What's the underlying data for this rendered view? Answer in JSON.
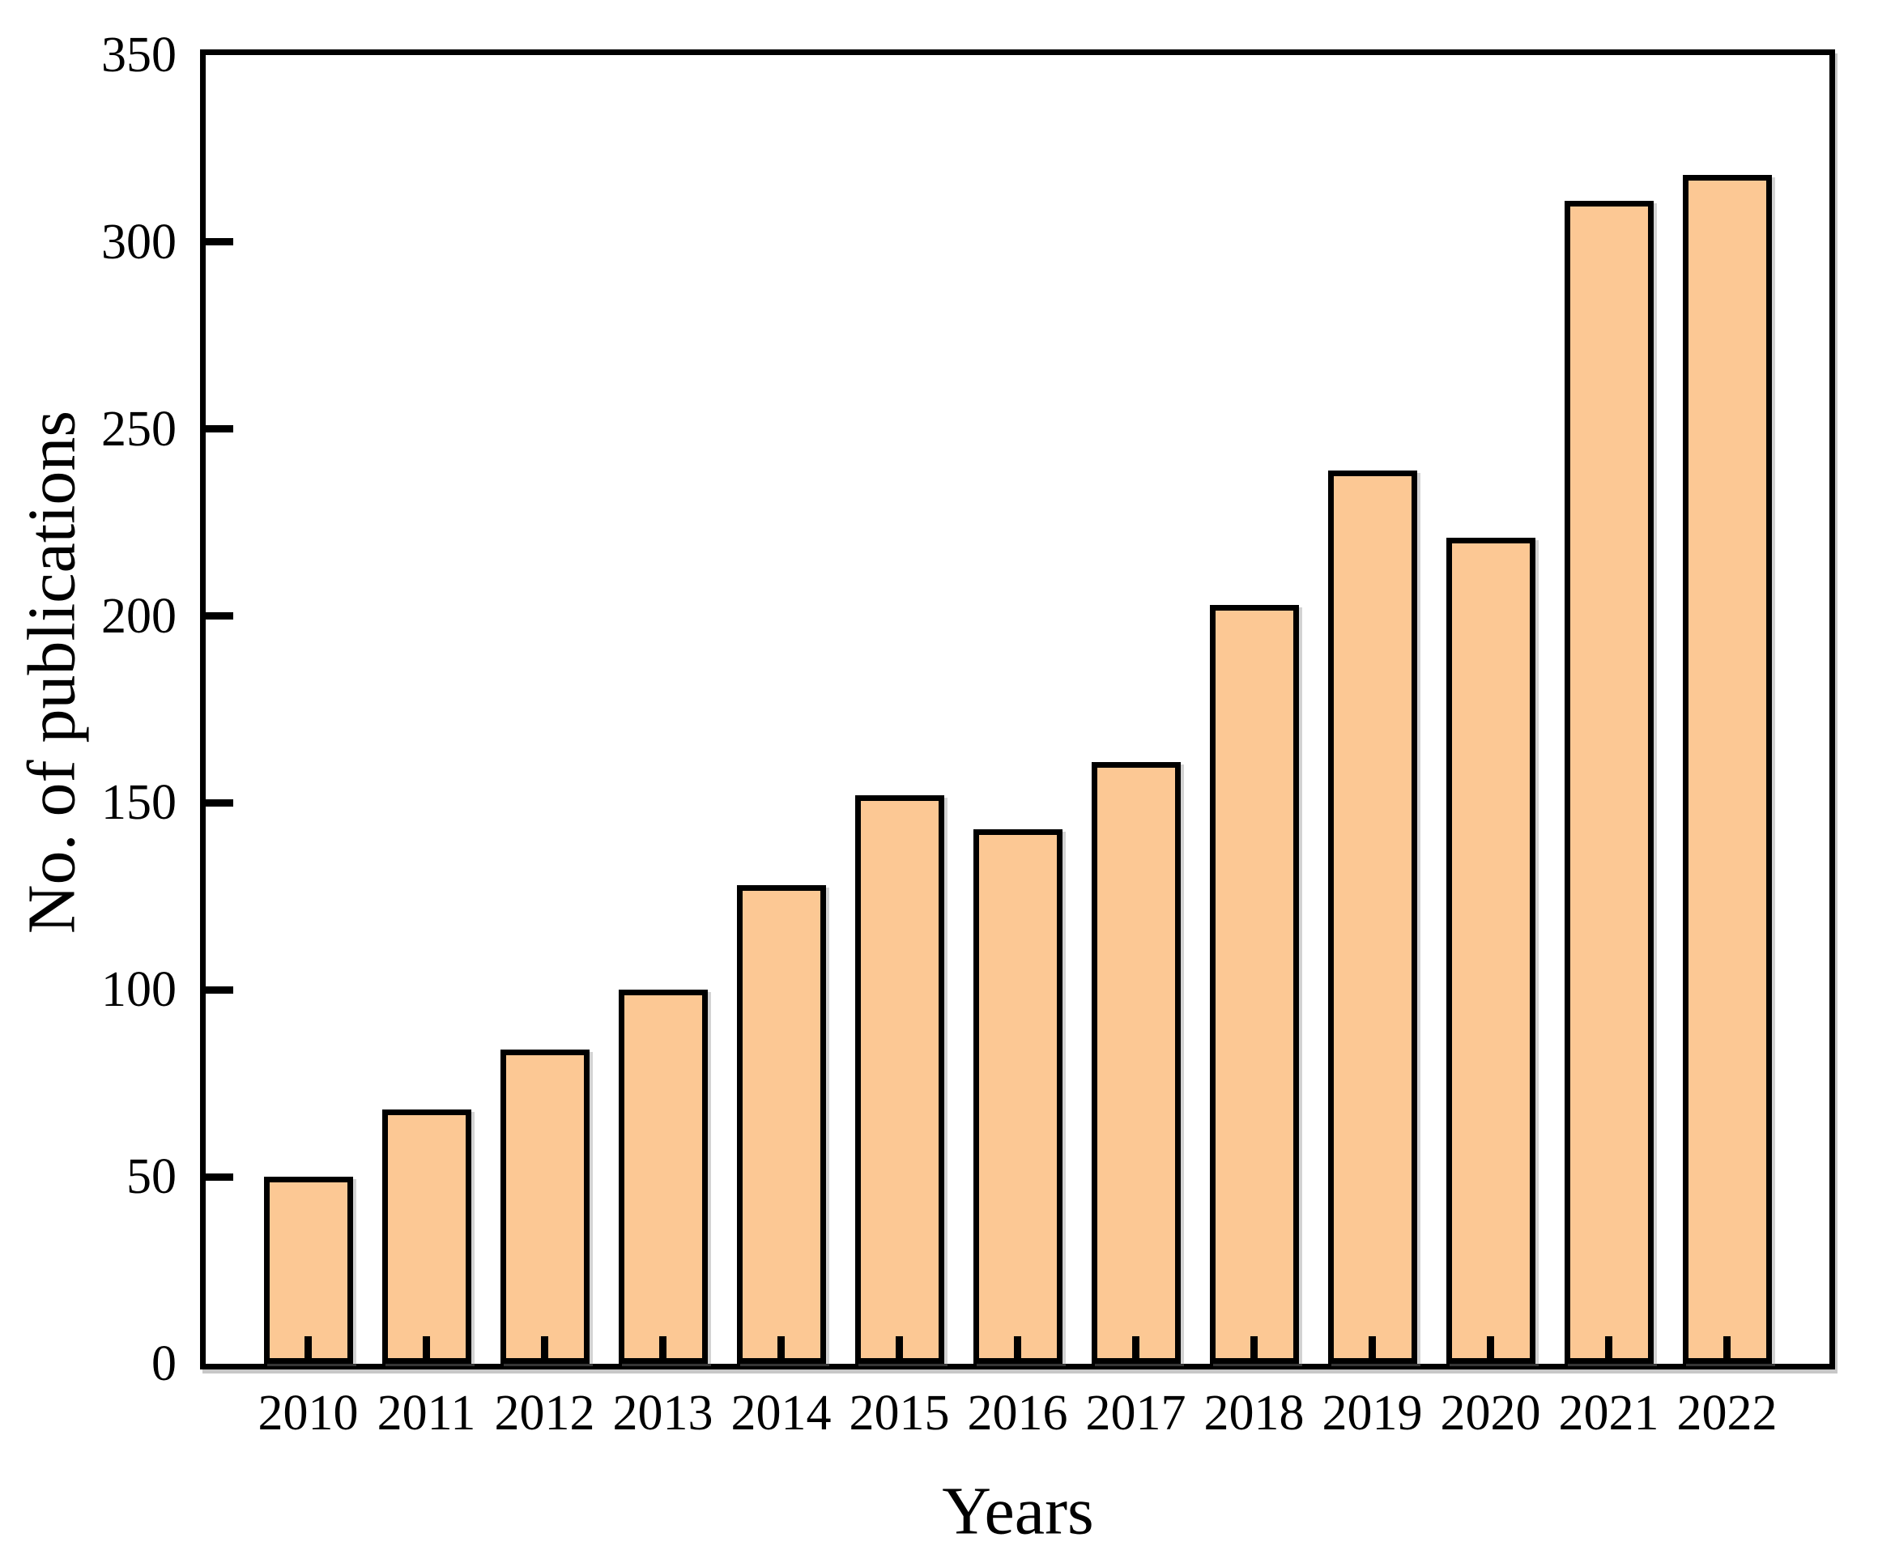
{
  "chart_data": {
    "type": "bar",
    "title": "",
    "xlabel": "Years",
    "ylabel": "No. of publications",
    "categories": [
      "2010",
      "2011",
      "2012",
      "2013",
      "2014",
      "2015",
      "2016",
      "2017",
      "2018",
      "2019",
      "2020",
      "2021",
      "2022"
    ],
    "values": [
      50,
      68,
      84,
      100,
      128,
      152,
      143,
      161,
      203,
      239,
      221,
      311,
      318
    ],
    "ylim": [
      0,
      350
    ],
    "yticks": [
      0,
      50,
      100,
      150,
      200,
      250,
      300,
      350
    ],
    "grid": false,
    "legend": null,
    "tick_direction": "in",
    "bar_color": "#FCC894",
    "bar_border_color": "#000000",
    "axis_color": "#000000",
    "background_color": "#FFFFFF"
  }
}
